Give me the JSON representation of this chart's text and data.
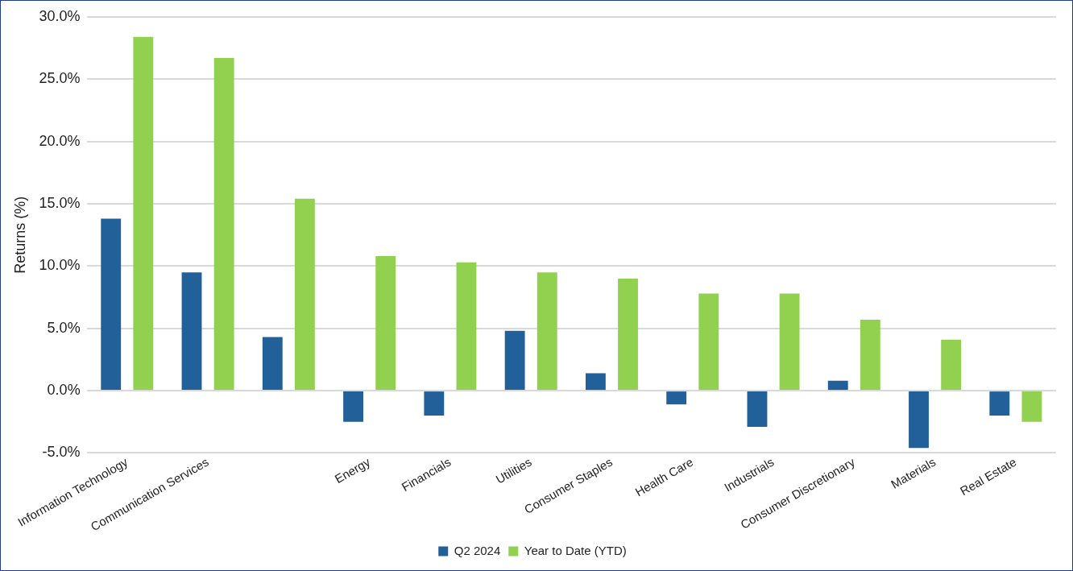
{
  "chart_data": {
    "type": "bar",
    "ylabel": "Returns (%)",
    "categories": [
      "Information Technology",
      "Communication Services",
      null,
      "Energy",
      "Financials",
      "Utilities",
      "Consumer Staples",
      "Health Care",
      "Industrials",
      "Consumer Discretionary",
      "Materials",
      "Real Estate"
    ],
    "series": [
      {
        "name": "Q2 2024",
        "color": "#22609a",
        "values": [
          13.8,
          9.5,
          4.3,
          -2.5,
          -2.0,
          4.8,
          1.4,
          -1.1,
          -2.9,
          0.8,
          -4.6,
          -2.0
        ]
      },
      {
        "name": "Year to Date (YTD)",
        "color": "#92d050",
        "values": [
          28.4,
          26.7,
          15.4,
          10.8,
          10.3,
          9.5,
          9.0,
          7.8,
          7.8,
          5.7,
          4.1,
          -2.5
        ]
      }
    ],
    "ylim": [
      -5,
      30
    ],
    "yticks": [
      {
        "value": -5,
        "label": "-5.0%"
      },
      {
        "value": 0,
        "label": "0.0%"
      },
      {
        "value": 5,
        "label": "5.0%"
      },
      {
        "value": 10,
        "label": "10.0%"
      },
      {
        "value": 15,
        "label": "15.0%"
      },
      {
        "value": 20,
        "label": "20.0%"
      },
      {
        "value": 25,
        "label": "25.0%"
      },
      {
        "value": 30,
        "label": "30.0%"
      }
    ],
    "grid": "y",
    "legend": "bottom"
  }
}
